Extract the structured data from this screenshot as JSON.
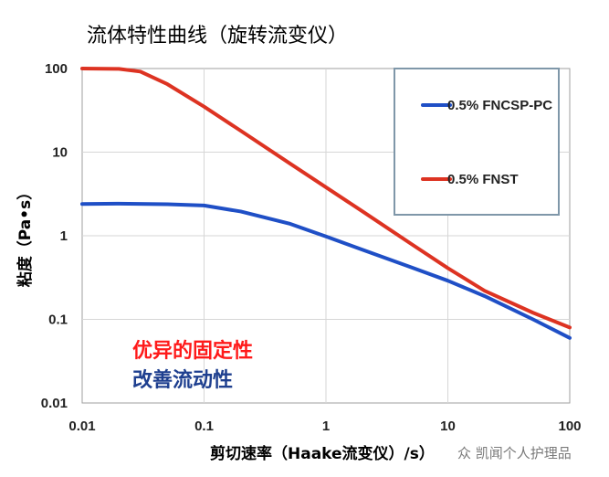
{
  "chart_data": {
    "type": "line",
    "title": "流体特性曲线（旋转流变仪）",
    "xlabel": "剪切速率（Haake流变仪）/s）",
    "ylabel": "粘度（Pa•s）",
    "x_scale": "log",
    "y_scale": "log",
    "xlim": [
      0.01,
      100
    ],
    "ylim": [
      0.01,
      100
    ],
    "x_ticks": [
      "0.01",
      "0.1",
      "1",
      "10",
      "100"
    ],
    "y_ticks": [
      "100",
      "10",
      "1",
      "0.1",
      "0.01"
    ],
    "grid": true,
    "legend_position": "top-right",
    "series": [
      {
        "name": "0.5% FNCSP-PC",
        "color": "#1f4fc6",
        "x": [
          0.01,
          0.02,
          0.05,
          0.1,
          0.2,
          0.5,
          1,
          2,
          5,
          10,
          20,
          50,
          100
        ],
        "y": [
          2.4,
          2.42,
          2.38,
          2.3,
          1.95,
          1.4,
          0.98,
          0.68,
          0.42,
          0.29,
          0.19,
          0.1,
          0.06
        ]
      },
      {
        "name": "0.5% FNST",
        "color": "#dd3322",
        "x": [
          0.01,
          0.02,
          0.03,
          0.05,
          0.1,
          0.2,
          0.5,
          1,
          2,
          5,
          10,
          20,
          50,
          100
        ],
        "y": [
          100,
          99,
          92,
          65,
          35,
          18,
          7.4,
          3.8,
          1.95,
          0.8,
          0.41,
          0.22,
          0.12,
          0.08
        ]
      }
    ],
    "annotations": [
      {
        "text": "优异的固定性",
        "color": "#ff1a1a"
      },
      {
        "text": "改善流动性",
        "color": "#1e3f8f"
      }
    ]
  },
  "watermark": {
    "text": "众 凯闻个人护理品"
  }
}
